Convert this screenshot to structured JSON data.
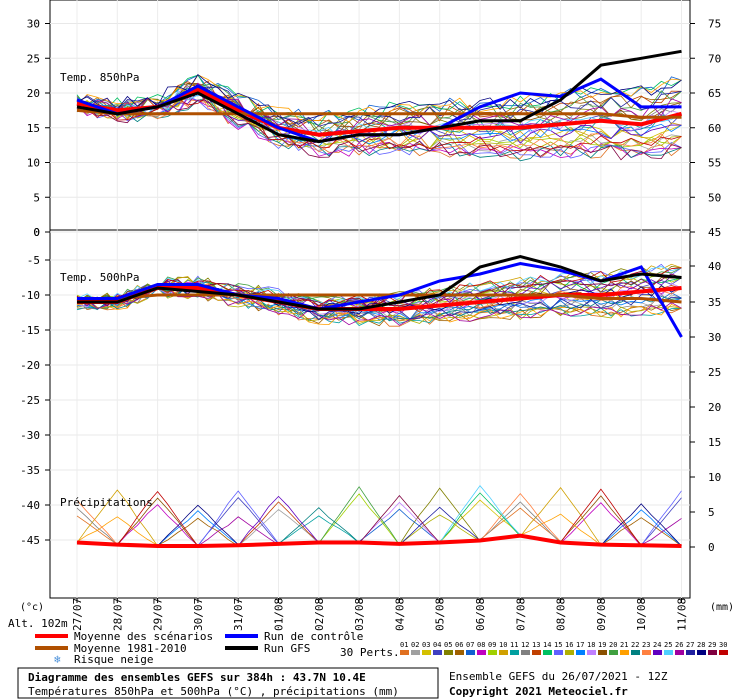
{
  "chart_data": {
    "type": "line",
    "panels": [
      {
        "label": "Temp. 850hPa",
        "left_ticks": [
          "30",
          "25",
          "20",
          "15",
          "10",
          "5",
          "0"
        ],
        "right_ticks": [
          "75",
          "70",
          "65",
          "60",
          "55",
          "50",
          "45"
        ],
        "ylim": [
          0,
          30
        ]
      },
      {
        "label": "Temp. 500hPa",
        "left_ticks": [
          "-5",
          "-10",
          "-15",
          "-20",
          "-25",
          "-30",
          "-35",
          "-40",
          "-45"
        ],
        "right_ticks": [
          "40",
          "35",
          "30",
          "25",
          "20",
          "15",
          "10",
          "5",
          "0"
        ],
        "ylim": [
          -49,
          -1
        ]
      }
    ],
    "precip_label": "Précipitations",
    "x_ticks": [
      "27/07",
      "28/07",
      "29/07",
      "30/07",
      "31/07",
      "01/08",
      "02/08",
      "03/08",
      "04/08",
      "05/08",
      "06/08",
      "07/08",
      "08/08",
      "09/08",
      "10/08",
      "11/08"
    ],
    "left_unit": "(°c)",
    "right_unit": "(mm)",
    "altitude": "Alt. 102m",
    "series": [
      {
        "name": "Moyenne des scénarios",
        "color": "#ff0000",
        "t850": [
          18.5,
          17.5,
          18,
          20.5,
          17.5,
          15,
          14,
          14.5,
          15,
          15,
          15,
          15,
          15.5,
          16,
          15.5,
          17
        ],
        "t500": [
          -11,
          -11,
          -9,
          -9,
          -10,
          -11,
          -12,
          -12,
          -12,
          -11.5,
          -11,
          -10.5,
          -10,
          -10,
          -9.5,
          -9
        ],
        "precip": [
          0.5,
          0.2,
          0,
          0,
          0.1,
          0.3,
          0.5,
          0.5,
          0.3,
          0.5,
          0.8,
          1.5,
          0.5,
          0.2,
          0.1,
          0
        ]
      },
      {
        "name": "Moyenne 1981-2010",
        "color": "#b05000",
        "t850": [
          17.5,
          17,
          17,
          17,
          17,
          17,
          17,
          17,
          17,
          17,
          17,
          17,
          17,
          17,
          16.5,
          16.5
        ],
        "t500": [
          -10.5,
          -10.5,
          -10,
          -10,
          -10,
          -10,
          -10,
          -10,
          -10,
          -10,
          -10,
          -10,
          -10,
          -10.5,
          -10.5,
          -11
        ]
      },
      {
        "name": "Run de contrôle",
        "color": "#0000ff",
        "t850": [
          19,
          17,
          18,
          21,
          18,
          15,
          13,
          14,
          14,
          15,
          18,
          20,
          19.5,
          22,
          18,
          18
        ],
        "t500": [
          -10.5,
          -10.5,
          -8.5,
          -8.5,
          -10,
          -10.5,
          -12,
          -11,
          -10,
          -8,
          -7,
          -5.5,
          -6.5,
          -8,
          -6,
          -16
        ]
      },
      {
        "name": "Run GFS",
        "color": "#000000",
        "t850": [
          18,
          17,
          18,
          20,
          17,
          14,
          13,
          14,
          14,
          15,
          16,
          16,
          19,
          24,
          25,
          26
        ],
        "t500": [
          -11,
          -11,
          -9,
          -9.5,
          -10,
          -11,
          -12,
          -12,
          -11,
          -10,
          -6,
          -4.5,
          -6,
          -8,
          -7,
          -7.5
        ]
      }
    ],
    "risk_label": "Risque neige",
    "perts_label": "30 Perts.",
    "perts_numbers": [
      "01",
      "02",
      "03",
      "04",
      "05",
      "06",
      "07",
      "08",
      "09",
      "10",
      "11",
      "12",
      "13",
      "14",
      "15",
      "16",
      "17",
      "18",
      "19",
      "20",
      "21",
      "22",
      "23",
      "24",
      "25",
      "26",
      "27",
      "28",
      "29",
      "30"
    ],
    "perts_colors": [
      "#e07020",
      "#a0a0a0",
      "#d4c000",
      "#4040c0",
      "#808000",
      "#a06000",
      "#1060d0",
      "#c000c0",
      "#a0d000",
      "#d0a000",
      "#00a0a0",
      "#808080",
      "#c04000",
      "#00c060",
      "#6060ff",
      "#b0b000",
      "#0080ff",
      "#c080ff",
      "#8a5000",
      "#40a040",
      "#ffa000",
      "#008080",
      "#ff8040",
      "#6000c0",
      "#50d0ff",
      "#a000a0",
      "#2020a0",
      "#000080",
      "#800040",
      "#c00000"
    ],
    "title": "Diagramme des ensembles GEFS sur 384h : 43.7N 10.4E",
    "subtitle": "Températures 850hPa et 500hPa (°C) , précipitations (mm)",
    "run_info": "Ensemble GEFS du 26/07/2021 - 12Z",
    "copyright": "Copyright 2021 Meteociel.fr"
  }
}
